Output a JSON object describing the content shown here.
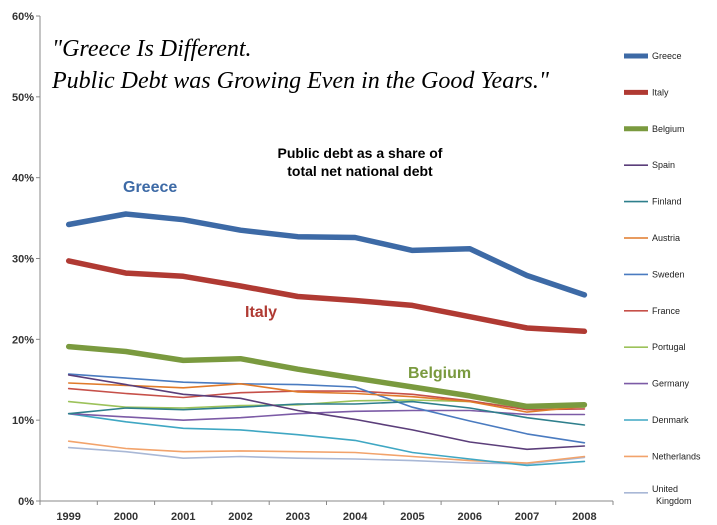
{
  "chart_data": {
    "type": "line",
    "title_line1": "\"Greece Is Different.",
    "title_line2": "Public Debt was Growing Even in the Good Years.\"",
    "subtitle_line1": "Public debt as a share of",
    "subtitle_line2": "total net national debt",
    "xlabel": "",
    "ylabel": "",
    "ylim": [
      0,
      60
    ],
    "yticks": [
      "0%",
      "10%",
      "20%",
      "30%",
      "40%",
      "50%",
      "60%"
    ],
    "categories": [
      "1999",
      "2000",
      "2001",
      "2002",
      "2003",
      "2004",
      "2005",
      "2006",
      "2007",
      "2008"
    ],
    "grid": false,
    "legend_position": "right",
    "annotations": [
      {
        "text": "Greece",
        "series": "Greece"
      },
      {
        "text": "Italy",
        "series": "Italy"
      },
      {
        "text": "Belgium",
        "series": "Belgium"
      }
    ],
    "series": [
      {
        "name": "Greece",
        "color": "#3D6AA6",
        "bold": true,
        "values": [
          34.2,
          35.5,
          34.8,
          33.5,
          32.7,
          32.6,
          31.0,
          31.2,
          27.9,
          25.5
        ]
      },
      {
        "name": "Italy",
        "color": "#B03A33",
        "bold": true,
        "values": [
          29.7,
          28.2,
          27.8,
          26.6,
          25.3,
          24.8,
          24.2,
          22.8,
          21.4,
          21.0
        ]
      },
      {
        "name": "Belgium",
        "color": "#7A9A3F",
        "bold": true,
        "values": [
          19.1,
          18.5,
          17.4,
          17.6,
          16.3,
          15.2,
          14.1,
          13.0,
          11.7,
          11.9
        ]
      },
      {
        "name": "Spain",
        "color": "#5B3E7A",
        "bold": false,
        "values": [
          15.6,
          14.4,
          13.2,
          12.7,
          11.2,
          10.1,
          8.8,
          7.3,
          6.4,
          6.8
        ]
      },
      {
        "name": "Finland",
        "color": "#2E7F8C",
        "bold": false,
        "values": [
          10.8,
          11.5,
          11.3,
          11.6,
          12.0,
          12.0,
          12.3,
          11.5,
          10.3,
          9.4
        ]
      },
      {
        "name": "Austria",
        "color": "#E07A2A",
        "bold": false,
        "values": [
          14.6,
          14.3,
          14.0,
          14.5,
          13.5,
          13.3,
          12.9,
          12.3,
          11.0,
          11.7
        ]
      },
      {
        "name": "Sweden",
        "color": "#4A7BC0",
        "bold": false,
        "values": [
          15.7,
          15.2,
          14.7,
          14.5,
          14.4,
          14.1,
          11.6,
          9.9,
          8.3,
          7.2
        ]
      },
      {
        "name": "France",
        "color": "#C65049",
        "bold": false,
        "values": [
          13.9,
          13.3,
          12.8,
          13.4,
          13.6,
          13.6,
          13.2,
          12.4,
          11.3,
          11.4
        ]
      },
      {
        "name": "Portugal",
        "color": "#9CC25A",
        "bold": false,
        "values": [
          12.3,
          11.6,
          11.5,
          11.8,
          11.9,
          12.4,
          12.5,
          12.3,
          11.5,
          11.6
        ]
      },
      {
        "name": "Germany",
        "color": "#7C5BA6",
        "bold": false,
        "values": [
          10.8,
          10.4,
          10.0,
          10.3,
          10.8,
          11.1,
          11.2,
          11.2,
          10.7,
          10.7
        ]
      },
      {
        "name": "Denmark",
        "color": "#3FA7C3",
        "bold": false,
        "values": [
          10.8,
          9.8,
          9.0,
          8.8,
          8.2,
          7.5,
          6.0,
          5.2,
          4.4,
          4.9
        ]
      },
      {
        "name": "Netherlands",
        "color": "#F2A36B",
        "bold": false,
        "values": [
          7.4,
          6.5,
          6.1,
          6.2,
          6.1,
          6.0,
          5.5,
          5.0,
          4.7,
          5.5
        ]
      },
      {
        "name": "United Kingdom",
        "legend_lines": [
          "United",
          "Kingdom"
        ],
        "color": "#A9B8D6",
        "bold": false,
        "values": [
          6.6,
          6.1,
          5.3,
          5.5,
          5.3,
          5.2,
          5.0,
          4.7,
          4.6,
          5.4
        ]
      }
    ]
  }
}
